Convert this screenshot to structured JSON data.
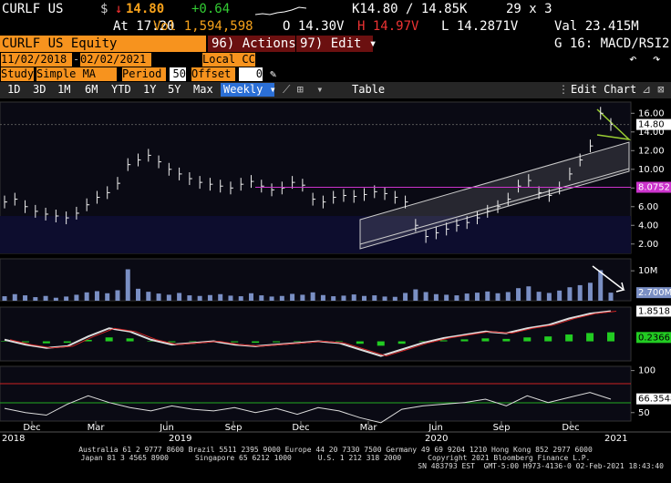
{
  "header": {
    "ticker": "CURLF US",
    "currency": "$",
    "arrow": "↓",
    "last": "14.80",
    "change": "+0.64",
    "bidask": "K14.80 / 14.85K",
    "size": "29 x 3",
    "time": "At 17:20",
    "volume": "Vol 1,594,598",
    "open": "O 14.30V",
    "high": "H 14.97V",
    "low": "L 14.2871V",
    "value": "Val 23.415M"
  },
  "toolbar": {
    "security": "CURLF US Equity",
    "actions": "96) Actions ▾",
    "edit": "97) Edit ▾",
    "page": "G 16: MACD/RSI2",
    "start_date": "11/02/2018",
    "end_date": "02/02/2021",
    "currency": "Local CCY",
    "study_label": "Study",
    "study": "Simple MA",
    "period_label": "Period",
    "period": "50",
    "offset_label": "Offset",
    "offset": "0",
    "ranges": [
      "1D",
      "3D",
      "1M",
      "6M",
      "YTD",
      "1Y",
      "5Y",
      "Max"
    ],
    "frequency": "Weekly ▾",
    "table": "Table",
    "edit_chart": "Edit Chart"
  },
  "price_panel": {
    "ylim": [
      1,
      17.2
    ],
    "yticks": [
      {
        "value": 16,
        "label": "16.00"
      },
      {
        "value": 14,
        "label": "14.00"
      },
      {
        "value": 12,
        "label": "12.00"
      },
      {
        "value": 10,
        "label": "10.00"
      },
      {
        "value": 8,
        "label": "8.00"
      },
      {
        "value": 6,
        "label": "6.00"
      },
      {
        "value": 4,
        "label": "4.00"
      },
      {
        "value": 2,
        "label": "2.00"
      }
    ],
    "last_label": {
      "value": 14.8,
      "label": "14.80"
    },
    "ma_label": {
      "value": 8.0752,
      "label": "8.0752"
    },
    "closes": [
      6.5,
      6.8,
      6.0,
      5.5,
      5.2,
      5.0,
      4.8,
      5.3,
      6.2,
      7.0,
      7.5,
      8.5,
      10.5,
      11.0,
      11.5,
      10.8,
      10.0,
      9.5,
      9.0,
      8.6,
      8.4,
      8.2,
      8.0,
      8.4,
      8.7,
      8.2,
      7.8,
      8.0,
      8.6,
      8.3,
      6.8,
      6.5,
      7.0,
      7.2,
      7.1,
      7.3,
      7.6,
      7.4,
      7.0,
      6.5,
      4.0,
      2.8,
      3.2,
      3.6,
      4.0,
      4.3,
      4.8,
      5.5,
      6.0,
      6.8,
      8.2,
      8.8,
      7.5,
      7.2,
      8.0,
      9.5,
      11.0,
      12.5,
      16.0,
      14.8
    ]
  },
  "volume_panel": {
    "ylim": [
      0,
      14
    ],
    "yticks": [
      {
        "value": 10,
        "label": "10M"
      }
    ],
    "last_label": {
      "value": 2.7,
      "label": "2.700M"
    },
    "values": [
      1.5,
      2.2,
      1.8,
      1.2,
      1.6,
      1.0,
      1.4,
      2.0,
      2.8,
      3.2,
      2.5,
      3.5,
      10.5,
      4.0,
      3.0,
      2.4,
      2.0,
      2.6,
      1.8,
      1.6,
      1.9,
      2.2,
      1.7,
      1.5,
      2.5,
      1.8,
      1.4,
      1.6,
      2.3,
      2.0,
      2.8,
      1.9,
      1.5,
      1.7,
      2.1,
      1.6,
      1.8,
      1.4,
      1.3,
      2.6,
      3.8,
      2.9,
      2.2,
      2.0,
      1.8,
      2.4,
      2.7,
      3.1,
      2.5,
      2.9,
      4.2,
      4.8,
      3.0,
      2.6,
      3.4,
      4.5,
      5.2,
      6.0,
      10.2,
      2.7
    ]
  },
  "macd_panel": {
    "ylim": [
      -1.2,
      2.1
    ],
    "macd_label": {
      "value": 1.8518,
      "label": "1.8518"
    },
    "hist_label": {
      "value": 0.2366,
      "label": "0.2366"
    },
    "macd": [
      0.1,
      -0.2,
      -0.4,
      -0.3,
      0.3,
      0.8,
      0.6,
      0.1,
      -0.2,
      -0.1,
      0.0,
      -0.2,
      -0.3,
      -0.2,
      -0.1,
      0.0,
      -0.1,
      -0.5,
      -0.9,
      -0.5,
      -0.1,
      0.2,
      0.4,
      0.6,
      0.5,
      0.8,
      1.0,
      1.4,
      1.7,
      1.85
    ]
  },
  "rsi_panel": {
    "ylim": [
      40,
      105
    ],
    "yticks": [
      100,
      50
    ],
    "last_label": {
      "value": 66.3548,
      "label": "66.3548"
    },
    "values": [
      55,
      50,
      47,
      60,
      70,
      62,
      56,
      52,
      58,
      54,
      52,
      56,
      50,
      55,
      48,
      56,
      52,
      44,
      38,
      54,
      58,
      60,
      62,
      66,
      58,
      70,
      62,
      68,
      74,
      66
    ]
  },
  "x_axis": {
    "months": [
      "Dec",
      "Mar",
      "Jun",
      "Sep",
      "Dec",
      "Mar",
      "Jun",
      "Sep",
      "Dec"
    ],
    "years": [
      "2018",
      "2019",
      "2020",
      "2021"
    ]
  },
  "footer": {
    "line1": "Australia 61 2 9777 8600 Brazil 5511 2395 9000 Europe 44 20 7330 7500 Germany 49 69 9204 1210 Hong Kong 852 2977 6000",
    "line2": "Japan 81 3 4565 8900      Singapore 65 6212 1000      U.S. 1 212 318 2000      Copyright 2021 Bloomberg Finance L.P.",
    "line3": "SN 483793 EST  GMT-5:00 H973-4136-0 02-Feb-2021 18:43:40"
  }
}
